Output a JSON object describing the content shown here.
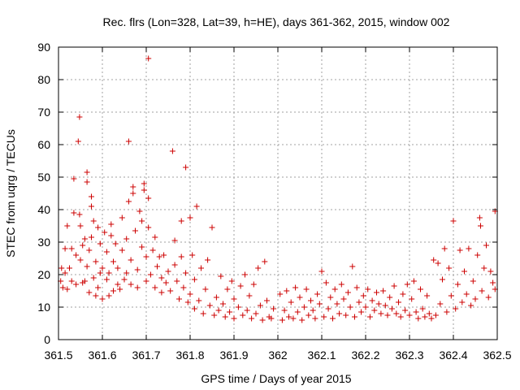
{
  "chart_data": {
    "type": "scatter",
    "title": "Rec. flrs (Lon=328, Lat=39, h=HE), days 361-362, 2015, window 002",
    "xlabel": "GPS time / Days of year 2015",
    "ylabel": "STEC from uqrg / TECUs",
    "xlim": [
      361.5,
      362.5
    ],
    "ylim": [
      0,
      90
    ],
    "xticks": [
      361.5,
      361.6,
      361.7,
      361.8,
      361.9,
      362.0,
      362.1,
      362.2,
      362.3,
      362.4,
      362.5
    ],
    "xtick_labels": [
      "361.5",
      "361.6",
      "361.7",
      "361.8",
      "361.9",
      "362",
      "362.1",
      "362.2",
      "362.3",
      "362.4",
      "362.5"
    ],
    "yticks": [
      0,
      10,
      20,
      30,
      40,
      50,
      60,
      70,
      80,
      90
    ],
    "ytick_labels": [
      "0",
      "10",
      "20",
      "30",
      "40",
      "50",
      "60",
      "70",
      "80",
      "90"
    ],
    "grid": true,
    "marker": "plus",
    "color": "#cc0000",
    "series": [
      {
        "name": "STEC",
        "points": [
          [
            361.505,
            18.0
          ],
          [
            361.507,
            22.0
          ],
          [
            361.51,
            16.0
          ],
          [
            361.515,
            28.0
          ],
          [
            361.515,
            20.5
          ],
          [
            361.52,
            35.0
          ],
          [
            361.52,
            15.5
          ],
          [
            361.525,
            22.0
          ],
          [
            361.53,
            28.0
          ],
          [
            361.53,
            18.0
          ],
          [
            361.535,
            49.5
          ],
          [
            361.535,
            39.0
          ],
          [
            361.54,
            17.0
          ],
          [
            361.54,
            26.0
          ],
          [
            361.545,
            61.0
          ],
          [
            361.548,
            68.5
          ],
          [
            361.548,
            38.5
          ],
          [
            361.55,
            35.0
          ],
          [
            361.55,
            24.5
          ],
          [
            361.555,
            17.5
          ],
          [
            361.555,
            29.0
          ],
          [
            361.56,
            18.0
          ],
          [
            361.56,
            31.0
          ],
          [
            361.565,
            51.5
          ],
          [
            361.565,
            48.5
          ],
          [
            361.565,
            22.5
          ],
          [
            361.57,
            14.5
          ],
          [
            361.57,
            27.5
          ],
          [
            361.575,
            44.0
          ],
          [
            361.575,
            41.0
          ],
          [
            361.575,
            31.5
          ],
          [
            361.58,
            36.5
          ],
          [
            361.58,
            19.0
          ],
          [
            361.585,
            13.5
          ],
          [
            361.585,
            24.0
          ],
          [
            361.59,
            34.5
          ],
          [
            361.59,
            16.0
          ],
          [
            361.595,
            29.5
          ],
          [
            361.595,
            20.5
          ],
          [
            361.6,
            12.5
          ],
          [
            361.6,
            22.0
          ],
          [
            361.605,
            33.0
          ],
          [
            361.61,
            18.5
          ],
          [
            361.61,
            27.0
          ],
          [
            361.615,
            13.5
          ],
          [
            361.615,
            20.5
          ],
          [
            361.62,
            35.5
          ],
          [
            361.62,
            32.0
          ],
          [
            361.625,
            15.0
          ],
          [
            361.625,
            24.0
          ],
          [
            361.63,
            29.5
          ],
          [
            361.635,
            17.0
          ],
          [
            361.635,
            22.0
          ],
          [
            361.64,
            15.5
          ],
          [
            361.645,
            37.5
          ],
          [
            361.645,
            27.5
          ],
          [
            361.65,
            18.5
          ],
          [
            361.655,
            31.0
          ],
          [
            361.655,
            20.5
          ],
          [
            361.66,
            61.0
          ],
          [
            361.66,
            42.5
          ],
          [
            361.665,
            17.0
          ],
          [
            361.665,
            24.5
          ],
          [
            361.67,
            47.0
          ],
          [
            361.67,
            45.0
          ],
          [
            361.675,
            33.5
          ],
          [
            361.68,
            16.0
          ],
          [
            361.68,
            21.5
          ],
          [
            361.685,
            39.5
          ],
          [
            361.69,
            28.5
          ],
          [
            361.69,
            36.5
          ],
          [
            361.695,
            48.0
          ],
          [
            361.695,
            46.0
          ],
          [
            361.7,
            18.0
          ],
          [
            361.7,
            25.5
          ],
          [
            361.705,
            86.5
          ],
          [
            361.705,
            43.5
          ],
          [
            361.705,
            34.5
          ],
          [
            361.71,
            20.0
          ],
          [
            361.715,
            27.5
          ],
          [
            361.72,
            31.5
          ],
          [
            361.72,
            16.0
          ],
          [
            361.725,
            22.5
          ],
          [
            361.73,
            25.5
          ],
          [
            361.735,
            19.0
          ],
          [
            361.735,
            14.5
          ],
          [
            361.74,
            26.0
          ],
          [
            361.745,
            17.5
          ],
          [
            361.75,
            21.0
          ],
          [
            361.755,
            15.0
          ],
          [
            361.76,
            58.0
          ],
          [
            361.765,
            30.5
          ],
          [
            361.765,
            23.0
          ],
          [
            361.77,
            18.0
          ],
          [
            361.775,
            12.5
          ],
          [
            361.78,
            36.5
          ],
          [
            361.78,
            25.5
          ],
          [
            361.785,
            16.0
          ],
          [
            361.79,
            53.0
          ],
          [
            361.79,
            20.5
          ],
          [
            361.795,
            11.5
          ],
          [
            361.8,
            37.5
          ],
          [
            361.8,
            14.0
          ],
          [
            361.805,
            26.0
          ],
          [
            361.81,
            9.5
          ],
          [
            361.81,
            18.5
          ],
          [
            361.815,
            41.0
          ],
          [
            361.82,
            12.0
          ],
          [
            361.825,
            22.0
          ],
          [
            361.83,
            8.0
          ],
          [
            361.835,
            15.5
          ],
          [
            361.84,
            24.5
          ],
          [
            361.845,
            10.5
          ],
          [
            361.85,
            34.5
          ],
          [
            361.855,
            7.5
          ],
          [
            361.86,
            13.0
          ],
          [
            361.865,
            9.0
          ],
          [
            361.87,
            19.5
          ],
          [
            361.875,
            11.0
          ],
          [
            361.88,
            7.0
          ],
          [
            361.885,
            15.5
          ],
          [
            361.89,
            8.5
          ],
          [
            361.895,
            18.0
          ],
          [
            361.9,
            6.5
          ],
          [
            361.9,
            12.5
          ],
          [
            361.91,
            10.0
          ],
          [
            361.915,
            16.5
          ],
          [
            361.92,
            7.5
          ],
          [
            361.925,
            20.0
          ],
          [
            361.93,
            9.0
          ],
          [
            361.935,
            13.5
          ],
          [
            361.94,
            6.5
          ],
          [
            361.945,
            17.0
          ],
          [
            361.95,
            8.0
          ],
          [
            361.955,
            22.0
          ],
          [
            361.96,
            10.5
          ],
          [
            361.965,
            6.0
          ],
          [
            361.97,
            24.0
          ],
          [
            361.975,
            12.0
          ],
          [
            361.98,
            7.0
          ],
          [
            361.985,
            6.5
          ],
          [
            361.99,
            9.5
          ],
          [
            362.005,
            14.0
          ],
          [
            362.01,
            6.0
          ],
          [
            362.015,
            9.0
          ],
          [
            362.02,
            15.0
          ],
          [
            362.025,
            7.0
          ],
          [
            362.03,
            11.5
          ],
          [
            362.035,
            6.5
          ],
          [
            362.04,
            16.0
          ],
          [
            362.045,
            8.5
          ],
          [
            362.05,
            13.0
          ],
          [
            362.055,
            6.0
          ],
          [
            362.06,
            10.0
          ],
          [
            362.065,
            15.5
          ],
          [
            362.07,
            7.5
          ],
          [
            362.075,
            12.0
          ],
          [
            362.08,
            9.0
          ],
          [
            362.085,
            6.5
          ],
          [
            362.09,
            14.0
          ],
          [
            362.095,
            11.0
          ],
          [
            362.1,
            21.0
          ],
          [
            362.105,
            7.0
          ],
          [
            362.11,
            17.5
          ],
          [
            362.115,
            9.5
          ],
          [
            362.12,
            13.0
          ],
          [
            362.125,
            6.5
          ],
          [
            362.13,
            15.5
          ],
          [
            362.135,
            11.0
          ],
          [
            362.14,
            8.0
          ],
          [
            362.145,
            17.0
          ],
          [
            362.15,
            12.5
          ],
          [
            362.155,
            7.5
          ],
          [
            362.16,
            14.5
          ],
          [
            362.165,
            10.0
          ],
          [
            362.17,
            22.5
          ],
          [
            362.175,
            7.0
          ],
          [
            362.18,
            16.0
          ],
          [
            362.185,
            11.5
          ],
          [
            362.19,
            8.5
          ],
          [
            362.195,
            13.5
          ],
          [
            362.2,
            10.0
          ],
          [
            362.205,
            15.5
          ],
          [
            362.21,
            7.0
          ],
          [
            362.215,
            12.0
          ],
          [
            362.22,
            9.0
          ],
          [
            362.225,
            14.5
          ],
          [
            362.23,
            11.0
          ],
          [
            362.235,
            8.0
          ],
          [
            362.24,
            15.0
          ],
          [
            362.245,
            10.5
          ],
          [
            362.25,
            7.5
          ],
          [
            362.255,
            13.0
          ],
          [
            362.26,
            9.5
          ],
          [
            362.265,
            16.5
          ],
          [
            362.27,
            8.0
          ],
          [
            362.275,
            11.5
          ],
          [
            362.28,
            7.0
          ],
          [
            362.285,
            14.0
          ],
          [
            362.29,
            9.0
          ],
          [
            362.295,
            17.0
          ],
          [
            362.3,
            7.5
          ],
          [
            362.305,
            12.5
          ],
          [
            362.31,
            18.0
          ],
          [
            362.315,
            8.5
          ],
          [
            362.32,
            6.5
          ],
          [
            362.325,
            15.5
          ],
          [
            362.33,
            9.5
          ],
          [
            362.335,
            7.0
          ],
          [
            362.34,
            13.5
          ],
          [
            362.345,
            8.0
          ],
          [
            362.35,
            6.5
          ],
          [
            362.355,
            24.5
          ],
          [
            362.36,
            7.5
          ],
          [
            362.365,
            23.5
          ],
          [
            362.37,
            11.0
          ],
          [
            362.375,
            18.5
          ],
          [
            362.38,
            28.0
          ],
          [
            362.385,
            8.5
          ],
          [
            362.39,
            22.0
          ],
          [
            362.395,
            13.5
          ],
          [
            362.4,
            36.5
          ],
          [
            362.405,
            9.5
          ],
          [
            362.41,
            17.0
          ],
          [
            362.415,
            27.5
          ],
          [
            362.42,
            11.5
          ],
          [
            362.425,
            21.0
          ],
          [
            362.43,
            14.0
          ],
          [
            362.435,
            28.0
          ],
          [
            362.44,
            10.5
          ],
          [
            362.445,
            18.0
          ],
          [
            362.45,
            12.5
          ],
          [
            362.455,
            26.0
          ],
          [
            362.46,
            37.5
          ],
          [
            362.462,
            35.0
          ],
          [
            362.465,
            15.0
          ],
          [
            362.47,
            22.0
          ],
          [
            362.475,
            29.0
          ],
          [
            362.48,
            13.0
          ],
          [
            362.485,
            21.0
          ],
          [
            362.49,
            17.5
          ],
          [
            362.495,
            39.5
          ],
          [
            362.495,
            15.5
          ]
        ]
      }
    ]
  }
}
